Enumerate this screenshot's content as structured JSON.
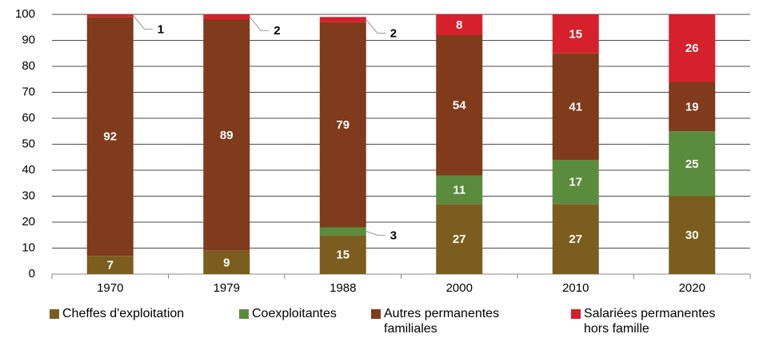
{
  "chart_data": {
    "type": "stacked_bar",
    "categories": [
      "1970",
      "1979",
      "1988",
      "2000",
      "2010",
      "2020"
    ],
    "series": [
      {
        "name": "Cheffes d'exploitation",
        "color": "#7b5e1f",
        "values": [
          7,
          9,
          15,
          27,
          27,
          30
        ]
      },
      {
        "name": "Coexploitantes",
        "color": "#5b8c3e",
        "values": [
          null,
          null,
          3,
          11,
          17,
          25
        ]
      },
      {
        "name": "Autres permanentes familiales",
        "color": "#7f3b1b",
        "values": [
          92,
          89,
          79,
          54,
          41,
          19
        ]
      },
      {
        "name": "Salariées permanentes hors famille",
        "color": "#d6202b",
        "values": [
          1,
          2,
          2,
          8,
          15,
          26
        ]
      }
    ],
    "ylim": [
      0,
      100
    ],
    "yticks": [
      0,
      10,
      20,
      30,
      40,
      50,
      60,
      70,
      80,
      90,
      100
    ],
    "grid": true
  }
}
